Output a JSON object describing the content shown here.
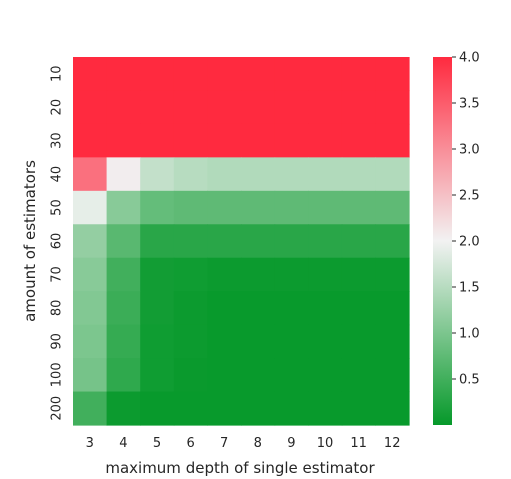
{
  "chart_data": {
    "type": "heatmap",
    "xlabel": "maximum depth of single estimator",
    "ylabel": "amount of estimators",
    "x_categories": [
      "3",
      "4",
      "5",
      "6",
      "7",
      "8",
      "9",
      "10",
      "11",
      "12"
    ],
    "y_categories": [
      "10",
      "20",
      "30",
      "40",
      "50",
      "60",
      "70",
      "80",
      "90",
      "100",
      "200"
    ],
    "values": [
      [
        4.0,
        4.0,
        4.0,
        4.0,
        4.0,
        4.0,
        4.0,
        4.0,
        4.0,
        4.0
      ],
      [
        4.0,
        4.0,
        4.0,
        4.0,
        4.0,
        4.0,
        4.0,
        4.0,
        4.0,
        4.0
      ],
      [
        4.0,
        4.0,
        4.0,
        4.0,
        4.0,
        4.0,
        4.0,
        4.0,
        4.0,
        4.0
      ],
      [
        3.3,
        2.05,
        1.6,
        1.5,
        1.45,
        1.45,
        1.45,
        1.45,
        1.45,
        1.45
      ],
      [
        1.9,
        1.1,
        0.8,
        0.75,
        0.75,
        0.75,
        0.75,
        0.75,
        0.75,
        0.75
      ],
      [
        1.2,
        0.7,
        0.3,
        0.3,
        0.3,
        0.3,
        0.3,
        0.3,
        0.3,
        0.3
      ],
      [
        1.1,
        0.5,
        0.1,
        0.08,
        0.05,
        0.05,
        0.05,
        0.05,
        0.05,
        0.05
      ],
      [
        1.05,
        0.45,
        0.1,
        0.05,
        0.02,
        0.02,
        0.02,
        0.02,
        0.02,
        0.02
      ],
      [
        1.0,
        0.4,
        0.08,
        0.05,
        0.02,
        0.02,
        0.02,
        0.02,
        0.02,
        0.02
      ],
      [
        0.95,
        0.35,
        0.08,
        0.03,
        0.02,
        0.02,
        0.02,
        0.02,
        0.02,
        0.02
      ],
      [
        0.5,
        0.05,
        0.02,
        0.02,
        0.02,
        0.02,
        0.02,
        0.02,
        0.02,
        0.02
      ]
    ],
    "colorbar": {
      "min": 0.0,
      "max": 4.0,
      "ticks": [
        0.5,
        1.0,
        1.5,
        2.0,
        2.5,
        3.0,
        3.5,
        4.0
      ],
      "tick_labels": [
        "0.5",
        "1.0",
        "1.5",
        "2.0",
        "2.5",
        "3.0",
        "3.5",
        "4.0"
      ],
      "colors": {
        "low": "#06992a",
        "mid": "#f2f2f2",
        "high": "#ff2a3f"
      }
    }
  }
}
